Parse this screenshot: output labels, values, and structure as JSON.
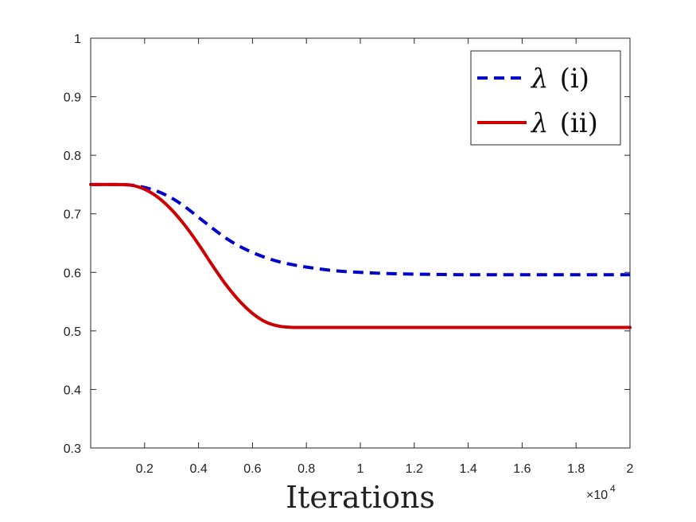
{
  "chart_data": {
    "type": "line",
    "title": "",
    "xlabel": "Iterations",
    "ylabel": "",
    "x_exponent_label": "×10",
    "x_exponent_power": "4",
    "xlim": [
      0,
      2
    ],
    "ylim": [
      0.3,
      1
    ],
    "grid": false,
    "legend_position": "top-right",
    "x_ticks": [
      0.2,
      0.4,
      0.6,
      0.8,
      1,
      1.2,
      1.4,
      1.6,
      1.8,
      2
    ],
    "x_tick_labels": [
      "0.2",
      "0.4",
      "0.6",
      "0.8",
      "1",
      "1.2",
      "1.4",
      "1.6",
      "1.8",
      "2"
    ],
    "y_ticks": [
      0.3,
      0.4,
      0.5,
      0.6,
      0.7,
      0.8,
      0.9,
      1
    ],
    "y_tick_labels": [
      "0.3",
      "0.4",
      "0.5",
      "0.6",
      "0.7",
      "0.8",
      "0.9",
      "1"
    ],
    "series": [
      {
        "name": "λ (i)",
        "legend_symbol": "λ",
        "legend_suffix": "(i)",
        "color": "#0000cc",
        "dash": true,
        "x": [
          0,
          0.1,
          0.15,
          0.2,
          0.25,
          0.3,
          0.35,
          0.4,
          0.45,
          0.5,
          0.55,
          0.6,
          0.65,
          0.7,
          0.75,
          0.8,
          0.9,
          1.0,
          1.1,
          1.2,
          1.4,
          1.6,
          1.8,
          2.0
        ],
        "y": [
          0.75,
          0.75,
          0.749,
          0.745,
          0.738,
          0.727,
          0.712,
          0.694,
          0.676,
          0.659,
          0.645,
          0.634,
          0.625,
          0.618,
          0.613,
          0.609,
          0.603,
          0.6,
          0.598,
          0.597,
          0.596,
          0.596,
          0.596,
          0.596
        ]
      },
      {
        "name": "λ (ii)",
        "legend_symbol": "λ",
        "legend_suffix": "(ii)",
        "color": "#cc0000",
        "dash": false,
        "x": [
          0,
          0.1,
          0.15,
          0.2,
          0.25,
          0.3,
          0.35,
          0.4,
          0.45,
          0.5,
          0.55,
          0.6,
          0.65,
          0.7,
          0.75,
          0.8,
          1.0,
          1.2,
          1.4,
          1.6,
          1.8,
          2.0
        ],
        "y": [
          0.75,
          0.75,
          0.749,
          0.742,
          0.728,
          0.707,
          0.68,
          0.648,
          0.613,
          0.58,
          0.552,
          0.53,
          0.515,
          0.508,
          0.506,
          0.506,
          0.506,
          0.506,
          0.506,
          0.506,
          0.506,
          0.506
        ]
      }
    ]
  }
}
